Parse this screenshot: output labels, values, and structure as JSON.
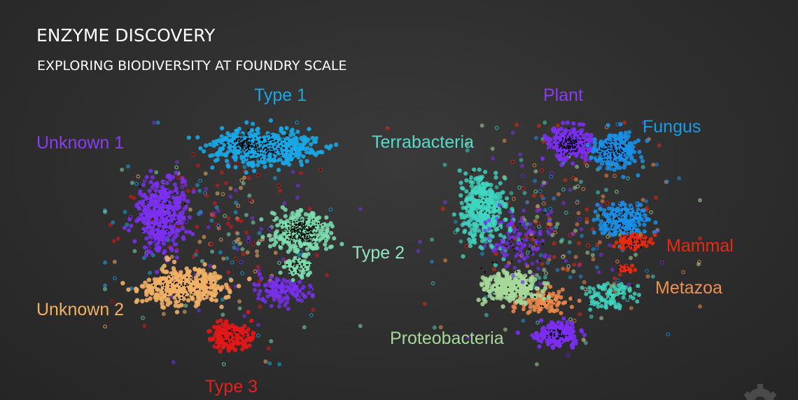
{
  "title": "ENZYME DISCOVERY",
  "subtitle": "EXPLORING BIODIVERSITY AT FOUNDRY SCALE",
  "chart_data": [
    {
      "type": "scatter",
      "title": "",
      "xlabel": "",
      "ylabel": "",
      "grid": false,
      "clusters": [
        {
          "label": "Type 1",
          "color": "#1aa7e6",
          "label_color": "#1aa7e6"
        },
        {
          "label": "Unknown 1",
          "color": "#7b2ff0",
          "label_color": "#8a3cf2"
        },
        {
          "label": "Type 2",
          "color": "#7ddeb0",
          "label_color": "#8fe6c0"
        },
        {
          "label": "Unknown 2",
          "color": "#f0b066",
          "label_color": "#f0b066"
        },
        {
          "label": "Type 3",
          "color": "#e01818",
          "label_color": "#e52020"
        }
      ]
    },
    {
      "type": "scatter",
      "title": "",
      "xlabel": "",
      "ylabel": "",
      "grid": false,
      "clusters": [
        {
          "label": "Plant",
          "color": "#7b2ff0",
          "label_color": "#8a3cf2"
        },
        {
          "label": "Fungus",
          "color": "#1a8fe6",
          "label_color": "#1a9be6"
        },
        {
          "label": "Terrabacteria",
          "color": "#40d6c0",
          "label_color": "#55dcc8"
        },
        {
          "label": "Mammal",
          "color": "#e82a10",
          "label_color": "#ec2a14"
        },
        {
          "label": "Metazoa",
          "color": "#f08a4a",
          "label_color": "#f09050"
        },
        {
          "label": "Proteobacteria",
          "color": "#a6d89a",
          "label_color": "#a6d89a"
        }
      ]
    }
  ],
  "icons": {
    "logo": "gear-icon"
  }
}
